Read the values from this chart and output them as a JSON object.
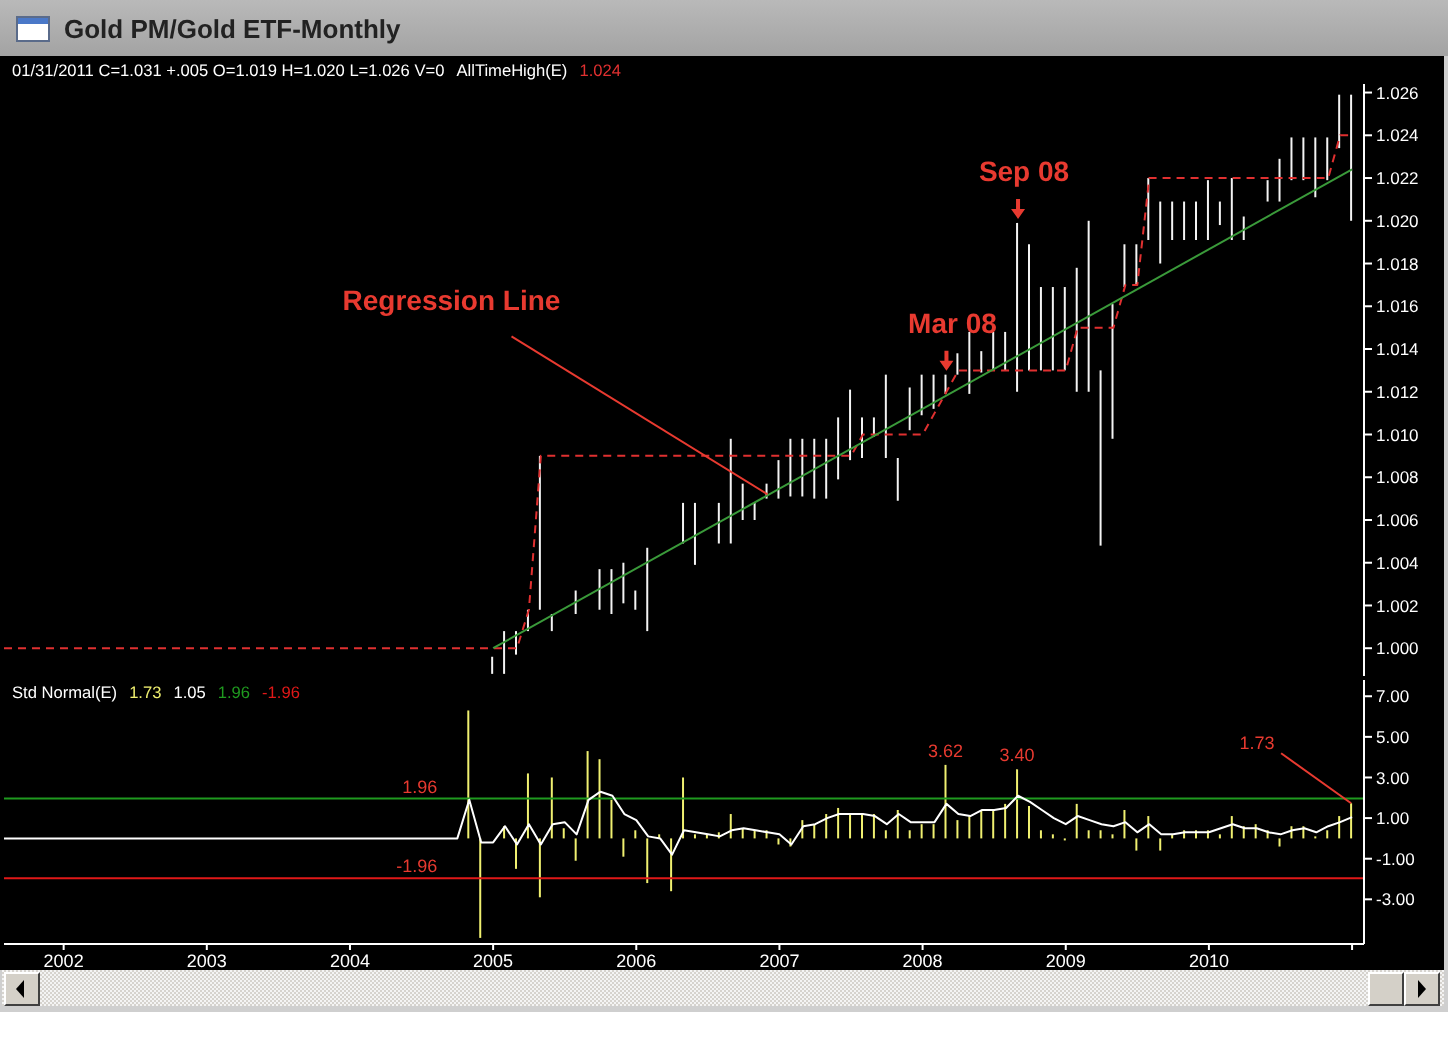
{
  "chart_data": [
    {
      "type": "bar",
      "title": "Gold PM/Gold ETF-Monthly",
      "subtitle": "01/31/2011 C=1.031 +.005 O=1.019 H=1.020 L=1.026 V=0",
      "legend_title": "AllTimeHigh(E)",
      "legend": "top left",
      "tick_labels": "y",
      "x": [
        "2005-01",
        "2005-02",
        "2005-03",
        "2005-04",
        "2005-05",
        "2005-06",
        "2005-07",
        "2005-08",
        "2005-09",
        "2005-10",
        "2005-11",
        "2005-12",
        "2006-01",
        "2006-02",
        "2006-03",
        "2006-04",
        "2006-05",
        "2006-06",
        "2006-07",
        "2006-08",
        "2006-09",
        "2006-10",
        "2006-11",
        "2006-12",
        "2007-01",
        "2007-02",
        "2007-03",
        "2007-04",
        "2007-05",
        "2007-06",
        "2007-07",
        "2007-08",
        "2007-09",
        "2007-10",
        "2007-11",
        "2007-12",
        "2008-01",
        "2008-02",
        "2008-03",
        "2008-04",
        "2008-05",
        "2008-06",
        "2008-07",
        "2008-08",
        "2008-09",
        "2008-10",
        "2008-11",
        "2008-12",
        "2009-01",
        "2009-02",
        "2009-03",
        "2009-04",
        "2009-05",
        "2009-06",
        "2009-07",
        "2009-08",
        "2009-09",
        "2009-10",
        "2009-11",
        "2009-12",
        "2010-01",
        "2010-02",
        "2010-03",
        "2010-04",
        "2010-05",
        "2010-06",
        "2010-07",
        "2010-08",
        "2010-09",
        "2010-10",
        "2010-11",
        "2010-12",
        "2011-01"
      ],
      "series": [
        {
          "color": "#f4f4f4",
          "base": [
            0.9988,
            0.9988,
            0.9997,
            1.0008,
            1.0018,
            1.0008,
            null,
            1.0016,
            null,
            1.0018,
            1.0016,
            1.0021,
            1.0018,
            1.0008,
            null,
            null,
            1.0049,
            1.0039,
            null,
            1.0049,
            1.0049,
            1.006,
            1.006,
            1.007,
            1.007,
            1.0071,
            1.0071,
            1.007,
            1.007,
            1.0079,
            1.0088,
            1.0089,
            1.0099,
            1.0089,
            1.0069,
            1.0102,
            1.0109,
            1.0112,
            1.0119,
            1.0128,
            1.0119,
            1.0129,
            1.013,
            1.013,
            1.012,
            1.013,
            1.013,
            1.013,
            1.013,
            1.012,
            1.012,
            1.0048,
            1.0098,
            1.0169,
            1.017,
            1.0191,
            1.018,
            1.0191,
            1.0191,
            1.0191,
            1.0191,
            1.0198,
            1.0191,
            1.0191,
            null,
            1.0209,
            1.0209,
            1.0219,
            1.0219,
            1.0211,
            1.0219,
            1.0234,
            1.02
          ],
          "values": [
            0.0008,
            0.002,
            0.0011,
            0.001,
            0.0072,
            0.0008,
            null,
            0.0011,
            null,
            0.0019,
            0.0021,
            0.0019,
            0.0009,
            0.0039,
            null,
            null,
            0.0019,
            0.0029,
            null,
            0.0019,
            0.0049,
            0.0017,
            0.0008,
            0.0007,
            0.0018,
            0.0027,
            0.0027,
            0.0028,
            0.0028,
            0.0029,
            0.0033,
            0.0019,
            0.0009,
            0.0039,
            0.002,
            0.002,
            0.0019,
            0.0016,
            0.0009,
            0.001,
            0.0029,
            0.001,
            0.0018,
            0.0018,
            0.0079,
            0.0059,
            0.0039,
            0.0039,
            0.0039,
            0.0058,
            0.008,
            0.0082,
            0.0063,
            0.002,
            0.0019,
            0.0029,
            0.0029,
            0.0018,
            0.0018,
            0.0018,
            0.0028,
            0.0011,
            0.0029,
            0.0011,
            null,
            0.001,
            0.002,
            0.002,
            0.002,
            0.0028,
            0.002,
            0.0025,
            0.0059
          ]
        },
        {
          "type": "line",
          "name": "1.024",
          "color": "#e03030",
          "line_style": "dashed",
          "x": [
            "2001-08",
            "2005-03",
            "2005-04",
            "2005-05",
            "2007-07",
            "2007-08",
            "2008-01",
            "2008-02",
            "2008-03",
            "2008-04",
            "2009-01",
            "2009-02",
            "2009-05",
            "2009-06",
            "2009-07",
            "2009-08",
            "2010-11",
            "2010-12",
            "2011-01"
          ],
          "values": [
            1.0,
            1.0,
            1.0018,
            1.009,
            1.009,
            1.01,
            1.01,
            1.011,
            1.012,
            1.013,
            1.013,
            1.015,
            1.015,
            1.017,
            1.017,
            1.022,
            1.022,
            1.024,
            1.024
          ]
        },
        {
          "type": "line",
          "color": "#3a9a3a",
          "x": [
            "2005-01",
            "2011-01"
          ],
          "values": [
            1.0,
            1.0224
          ]
        }
      ],
      "xlim": [
        "2001-08",
        "2011-02"
      ],
      "ylim": [
        0.9987,
        1.0264
      ],
      "yticks": [
        {
          "value": 1,
          "label": "1.000"
        },
        1.002,
        1.004,
        1.006,
        1.008,
        {
          "value": 1.01,
          "label": "1.010"
        },
        1.012,
        1.014,
        1.016,
        1.018,
        {
          "value": 1.02,
          "label": "1.020"
        },
        1.022,
        1.024,
        1.026
      ],
      "annotations": [
        {
          "text": "Regression Line",
          "x": "2006-12",
          "y": 1.0072
        },
        {
          "text": "Mar 08",
          "x": "2008-03",
          "y": 1.0128
        },
        {
          "text": "Sep 08",
          "x": "2008-09",
          "y": 1.0199
        }
      ]
    },
    {
      "type": "bar",
      "legend_title": "Std Normal(E)",
      "legend": "top left",
      "x": [
        "2004-11",
        "2004-12",
        "2005-01",
        "2005-02",
        "2005-03",
        "2005-04",
        "2005-05",
        "2005-06",
        "2005-07",
        "2005-08",
        "2005-09",
        "2005-10",
        "2005-11",
        "2005-12",
        "2006-01",
        "2006-02",
        "2006-03",
        "2006-04",
        "2006-05",
        "2006-06",
        "2006-07",
        "2006-08",
        "2006-09",
        "2006-10",
        "2006-11",
        "2006-12",
        "2007-01",
        "2007-02",
        "2007-03",
        "2007-04",
        "2007-05",
        "2007-06",
        "2007-07",
        "2007-08",
        "2007-09",
        "2007-10",
        "2007-11",
        "2007-12",
        "2008-01",
        "2008-02",
        "2008-03",
        "2008-04",
        "2008-05",
        "2008-06",
        "2008-07",
        "2008-08",
        "2008-09",
        "2008-10",
        "2008-11",
        "2008-12",
        "2009-01",
        "2009-02",
        "2009-03",
        "2009-04",
        "2009-05",
        "2009-06",
        "2009-07",
        "2009-08",
        "2009-09",
        "2009-10",
        "2009-11",
        "2009-12",
        "2010-01",
        "2010-02",
        "2010-03",
        "2010-04",
        "2010-05",
        "2010-06",
        "2010-07",
        "2010-08",
        "2010-09",
        "2010-10",
        "2010-11",
        "2010-12",
        "2011-01"
      ],
      "series": [
        {
          "name": "1.73",
          "color": "#f0f070",
          "values": [
            6.3,
            -4.9,
            null,
            0.6,
            -1.5,
            3.2,
            -2.9,
            3.0,
            0.5,
            -1.1,
            4.3,
            3.9,
            1.9,
            -0.9,
            0.4,
            -2.2,
            0.2,
            -2.6,
            3.0,
            0.2,
            0.2,
            0.3,
            1.2,
            0.5,
            0.4,
            0.4,
            -0.3,
            -0.4,
            0.9,
            0.7,
            1.2,
            1.5,
            1.2,
            1.2,
            1.2,
            0.4,
            1.4,
            0.4,
            0.7,
            0.7,
            3.62,
            0.9,
            1.1,
            1.4,
            1.4,
            1.7,
            3.4,
            1.6,
            0.4,
            0.2,
            -0.1,
            1.7,
            0.4,
            0.4,
            0.2,
            1.4,
            -0.6,
            1.1,
            -0.6,
            0.2,
            0.4,
            0.4,
            0.4,
            0.2,
            1.1,
            0.6,
            0.7,
            0.4,
            -0.4,
            0.6,
            0.6,
            0.1,
            0.4,
            1.1,
            1.73
          ],
          "value_labels": [
            null,
            null,
            null,
            null,
            null,
            null,
            null,
            null,
            null,
            null,
            null,
            null,
            null,
            null,
            null,
            null,
            null,
            null,
            null,
            null,
            null,
            null,
            null,
            null,
            null,
            null,
            null,
            null,
            null,
            null,
            null,
            null,
            null,
            null,
            null,
            null,
            null,
            null,
            null,
            null,
            "3.62",
            null,
            null,
            null,
            null,
            null,
            "3.40",
            null,
            null,
            null,
            null,
            null,
            null,
            null,
            null,
            null,
            null,
            null,
            null,
            null,
            null,
            null,
            null,
            null,
            null,
            null,
            null,
            null,
            null,
            null,
            null,
            null,
            null,
            null,
            "1.73"
          ]
        },
        {
          "type": "line",
          "name": "1.05",
          "color": "#ffffff",
          "x": [
            "2001-08",
            "2004-10",
            "2004-11",
            "2004-12",
            "2005-01",
            "2005-02",
            "2005-03",
            "2005-04",
            "2005-05",
            "2005-06",
            "2005-07",
            "2005-08",
            "2005-09",
            "2005-10",
            "2005-11",
            "2005-12",
            "2006-01",
            "2006-02",
            "2006-03",
            "2006-04",
            "2006-05",
            "2006-06",
            "2006-07",
            "2006-08",
            "2006-09",
            "2006-10",
            "2006-11",
            "2006-12",
            "2007-01",
            "2007-02",
            "2007-03",
            "2007-04",
            "2007-05",
            "2007-06",
            "2007-07",
            "2007-08",
            "2007-09",
            "2007-10",
            "2007-11",
            "2007-12",
            "2008-01",
            "2008-02",
            "2008-03",
            "2008-04",
            "2008-05",
            "2008-06",
            "2008-07",
            "2008-08",
            "2008-09",
            "2008-10",
            "2008-11",
            "2008-12",
            "2009-01",
            "2009-02",
            "2009-03",
            "2009-04",
            "2009-05",
            "2009-06",
            "2009-07",
            "2009-08",
            "2009-09",
            "2009-10",
            "2009-11",
            "2009-12",
            "2010-01",
            "2010-02",
            "2010-03",
            "2010-04",
            "2010-05",
            "2010-06",
            "2010-07",
            "2010-08",
            "2010-09",
            "2010-10",
            "2010-11",
            "2010-12",
            "2011-01"
          ],
          "values": [
            0,
            0,
            1.9,
            -0.2,
            -0.2,
            0.6,
            -0.3,
            0.7,
            -0.3,
            0.7,
            0.8,
            0.2,
            1.9,
            2.3,
            2.1,
            1.2,
            0.9,
            0.1,
            0.0,
            -0.8,
            0.4,
            0.3,
            0.2,
            0.1,
            0.4,
            0.5,
            0.4,
            0.3,
            0.2,
            -0.3,
            0.6,
            0.7,
            1.0,
            1.2,
            1.2,
            1.2,
            1.1,
            0.7,
            1.2,
            0.8,
            0.8,
            0.8,
            1.7,
            1.2,
            1.1,
            1.4,
            1.4,
            1.5,
            2.1,
            1.8,
            1.4,
            1.0,
            0.7,
            1.1,
            0.9,
            0.7,
            0.6,
            0.8,
            0.3,
            0.7,
            0.2,
            0.2,
            0.3,
            0.3,
            0.3,
            0.5,
            0.7,
            0.5,
            0.5,
            0.3,
            0.2,
            0.4,
            0.5,
            0.3,
            0.6,
            0.8,
            1.05
          ]
        }
      ],
      "ref_lines": [
        {
          "axis": "y",
          "value": 1.96,
          "label": "1.96",
          "color": "#1f9a1f"
        },
        {
          "axis": "y",
          "value": -1.96,
          "label": "-1.96",
          "color": "#e01818"
        }
      ],
      "xlim": [
        "2001-08",
        "2011-02"
      ],
      "ylim": [
        -5.2,
        7.8
      ],
      "xticks": [
        "2002",
        "2003",
        "2004",
        "2005",
        "2006",
        "2007",
        "2008",
        "2009",
        "2010",
        {
          "value": "2011",
          "label": null
        }
      ],
      "yticks": [
        {
          "value": -3,
          "label": "-3.00"
        },
        {
          "value": -1,
          "label": "-1.00"
        },
        {
          "value": 1,
          "label": "1.00"
        },
        {
          "value": 3,
          "label": "3.00"
        },
        {
          "value": 5,
          "label": "5.00"
        },
        {
          "value": 7,
          "label": "7.00"
        }
      ]
    }
  ]
}
